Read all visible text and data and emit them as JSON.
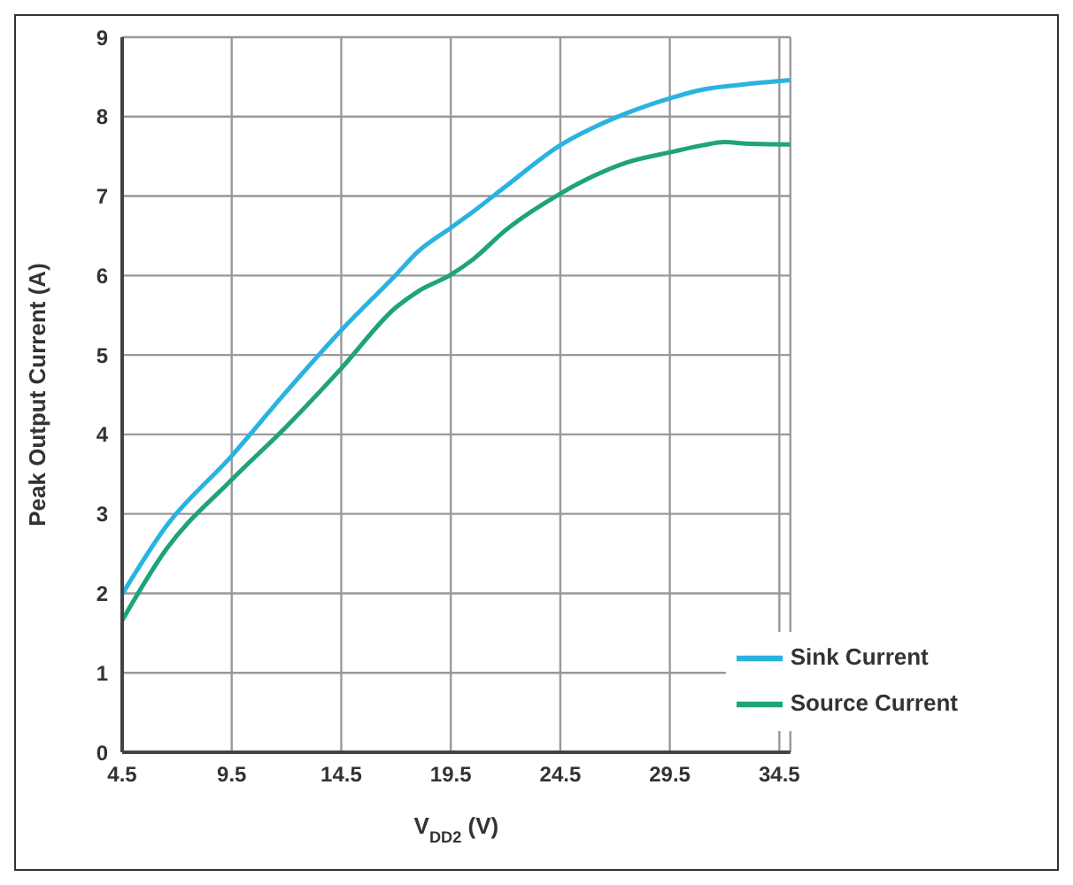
{
  "chart_data": {
    "type": "line",
    "xlabel": "V$_{DD2}$ (V)",
    "ylabel": "Peak Output Current (A)",
    "x": [
      4.5,
      6.5,
      9.5,
      12,
      14.5,
      17,
      18,
      19.5,
      20.5,
      22,
      24.5,
      26,
      27.5,
      29.5,
      31,
      32,
      33,
      35
    ],
    "series": [
      {
        "name": "Source Current",
        "color": "#1fa37a",
        "values": [
          1.66,
          2.55,
          3.43,
          4.1,
          4.83,
          5.6,
          5.8,
          6.01,
          6.2,
          6.57,
          7.03,
          7.25,
          7.42,
          7.55,
          7.64,
          7.68,
          7.66,
          7.65
        ]
      },
      {
        "name": "Sink Current",
        "color": "#2ab3e0",
        "values": [
          1.99,
          2.84,
          3.73,
          4.54,
          5.31,
          6.01,
          6.3,
          6.6,
          6.8,
          7.12,
          7.64,
          7.86,
          8.04,
          8.23,
          8.34,
          8.38,
          8.41,
          8.46
        ]
      }
    ],
    "xlim": [
      4.5,
      35
    ],
    "xticks": [
      4.5,
      9.5,
      14.5,
      19.5,
      24.5,
      29.5,
      34.5
    ],
    "ylim": [
      0,
      9
    ],
    "yticks": [
      0,
      1,
      2,
      3,
      4,
      5,
      6,
      7,
      8,
      9
    ],
    "grid": true,
    "legend": "bottom right",
    "marker": "none",
    "line_style": "solid"
  }
}
